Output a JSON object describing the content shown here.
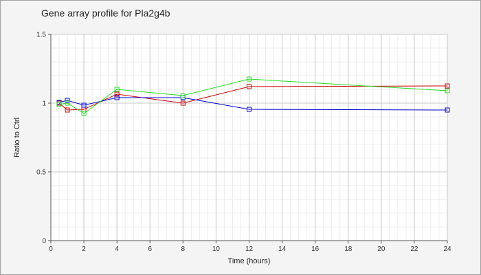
{
  "chart_data": {
    "type": "line",
    "title": "Gene array profile for Pla2g4b",
    "xlabel": "Time (hours)",
    "ylabel": "Ratio to Ctrl",
    "xlim": [
      0,
      24
    ],
    "ylim": [
      0,
      1.5
    ],
    "x_ticks": [
      "0",
      "2",
      "4",
      "6",
      "8",
      "10",
      "12",
      "14",
      "16",
      "18",
      "20",
      "22",
      "24"
    ],
    "y_ticks": [
      "0",
      "0.5",
      "1",
      "1.5"
    ],
    "grid": true,
    "series": [
      {
        "color": "#cc0000",
        "x": [
          0.5,
          1,
          2,
          4,
          8,
          12,
          24
        ],
        "y": [
          1.0,
          0.95,
          0.955,
          1.065,
          1.0,
          1.12,
          1.125
        ]
      },
      {
        "color": "#0000cc",
        "x": [
          0.5,
          1,
          2,
          4,
          8,
          12,
          24
        ],
        "y": [
          1.005,
          1.02,
          0.985,
          1.04,
          1.04,
          0.955,
          0.95
        ]
      },
      {
        "color": "#22dd22",
        "x": [
          0.5,
          1,
          2,
          4,
          8,
          12,
          24
        ],
        "y": [
          0.99,
          1.0,
          0.925,
          1.1,
          1.055,
          1.175,
          1.09
        ]
      }
    ]
  }
}
